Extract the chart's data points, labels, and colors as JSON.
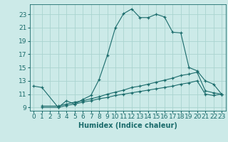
{
  "xlabel": "Humidex (Indice chaleur)",
  "bg_color": "#cceae8",
  "grid_color": "#aad4d0",
  "line_color": "#1a6b6b",
  "xlim": [
    -0.5,
    23.5
  ],
  "ylim": [
    8.5,
    24.5
  ],
  "yticks": [
    9,
    11,
    13,
    15,
    17,
    19,
    21,
    23
  ],
  "xticks": [
    0,
    1,
    2,
    3,
    4,
    5,
    6,
    7,
    8,
    9,
    10,
    11,
    12,
    13,
    14,
    15,
    16,
    17,
    18,
    19,
    20,
    21,
    22,
    23
  ],
  "series1_x": [
    0,
    1,
    3,
    4,
    5,
    6,
    7,
    8,
    9,
    10,
    11,
    12,
    13,
    14,
    15,
    16,
    17,
    18,
    19,
    20,
    21,
    22,
    23
  ],
  "series1_y": [
    12.2,
    12.0,
    9.0,
    10.0,
    9.5,
    10.2,
    10.8,
    13.2,
    16.8,
    21.0,
    23.1,
    23.8,
    22.5,
    22.5,
    23.0,
    22.6,
    20.3,
    20.2,
    15.0,
    14.5,
    13.0,
    12.5,
    11.0
  ],
  "series2_x": [
    1,
    3,
    4,
    5,
    6,
    7,
    8,
    9,
    10,
    11,
    12,
    13,
    14,
    15,
    16,
    17,
    18,
    19,
    20,
    21,
    22,
    23
  ],
  "series2_y": [
    9.2,
    9.2,
    9.5,
    9.8,
    10.0,
    10.3,
    10.6,
    11.0,
    11.3,
    11.6,
    12.0,
    12.2,
    12.5,
    12.8,
    13.1,
    13.4,
    13.8,
    14.0,
    14.3,
    11.5,
    11.2,
    11.0
  ],
  "series3_x": [
    1,
    3,
    4,
    5,
    6,
    7,
    8,
    9,
    10,
    11,
    12,
    13,
    14,
    15,
    16,
    17,
    18,
    19,
    20,
    21,
    22,
    23
  ],
  "series3_y": [
    9.0,
    9.0,
    9.3,
    9.5,
    9.8,
    10.0,
    10.3,
    10.5,
    10.8,
    11.0,
    11.2,
    11.4,
    11.6,
    11.8,
    12.0,
    12.2,
    12.5,
    12.7,
    13.0,
    11.0,
    10.8,
    11.0
  ],
  "font_size": 6.5
}
